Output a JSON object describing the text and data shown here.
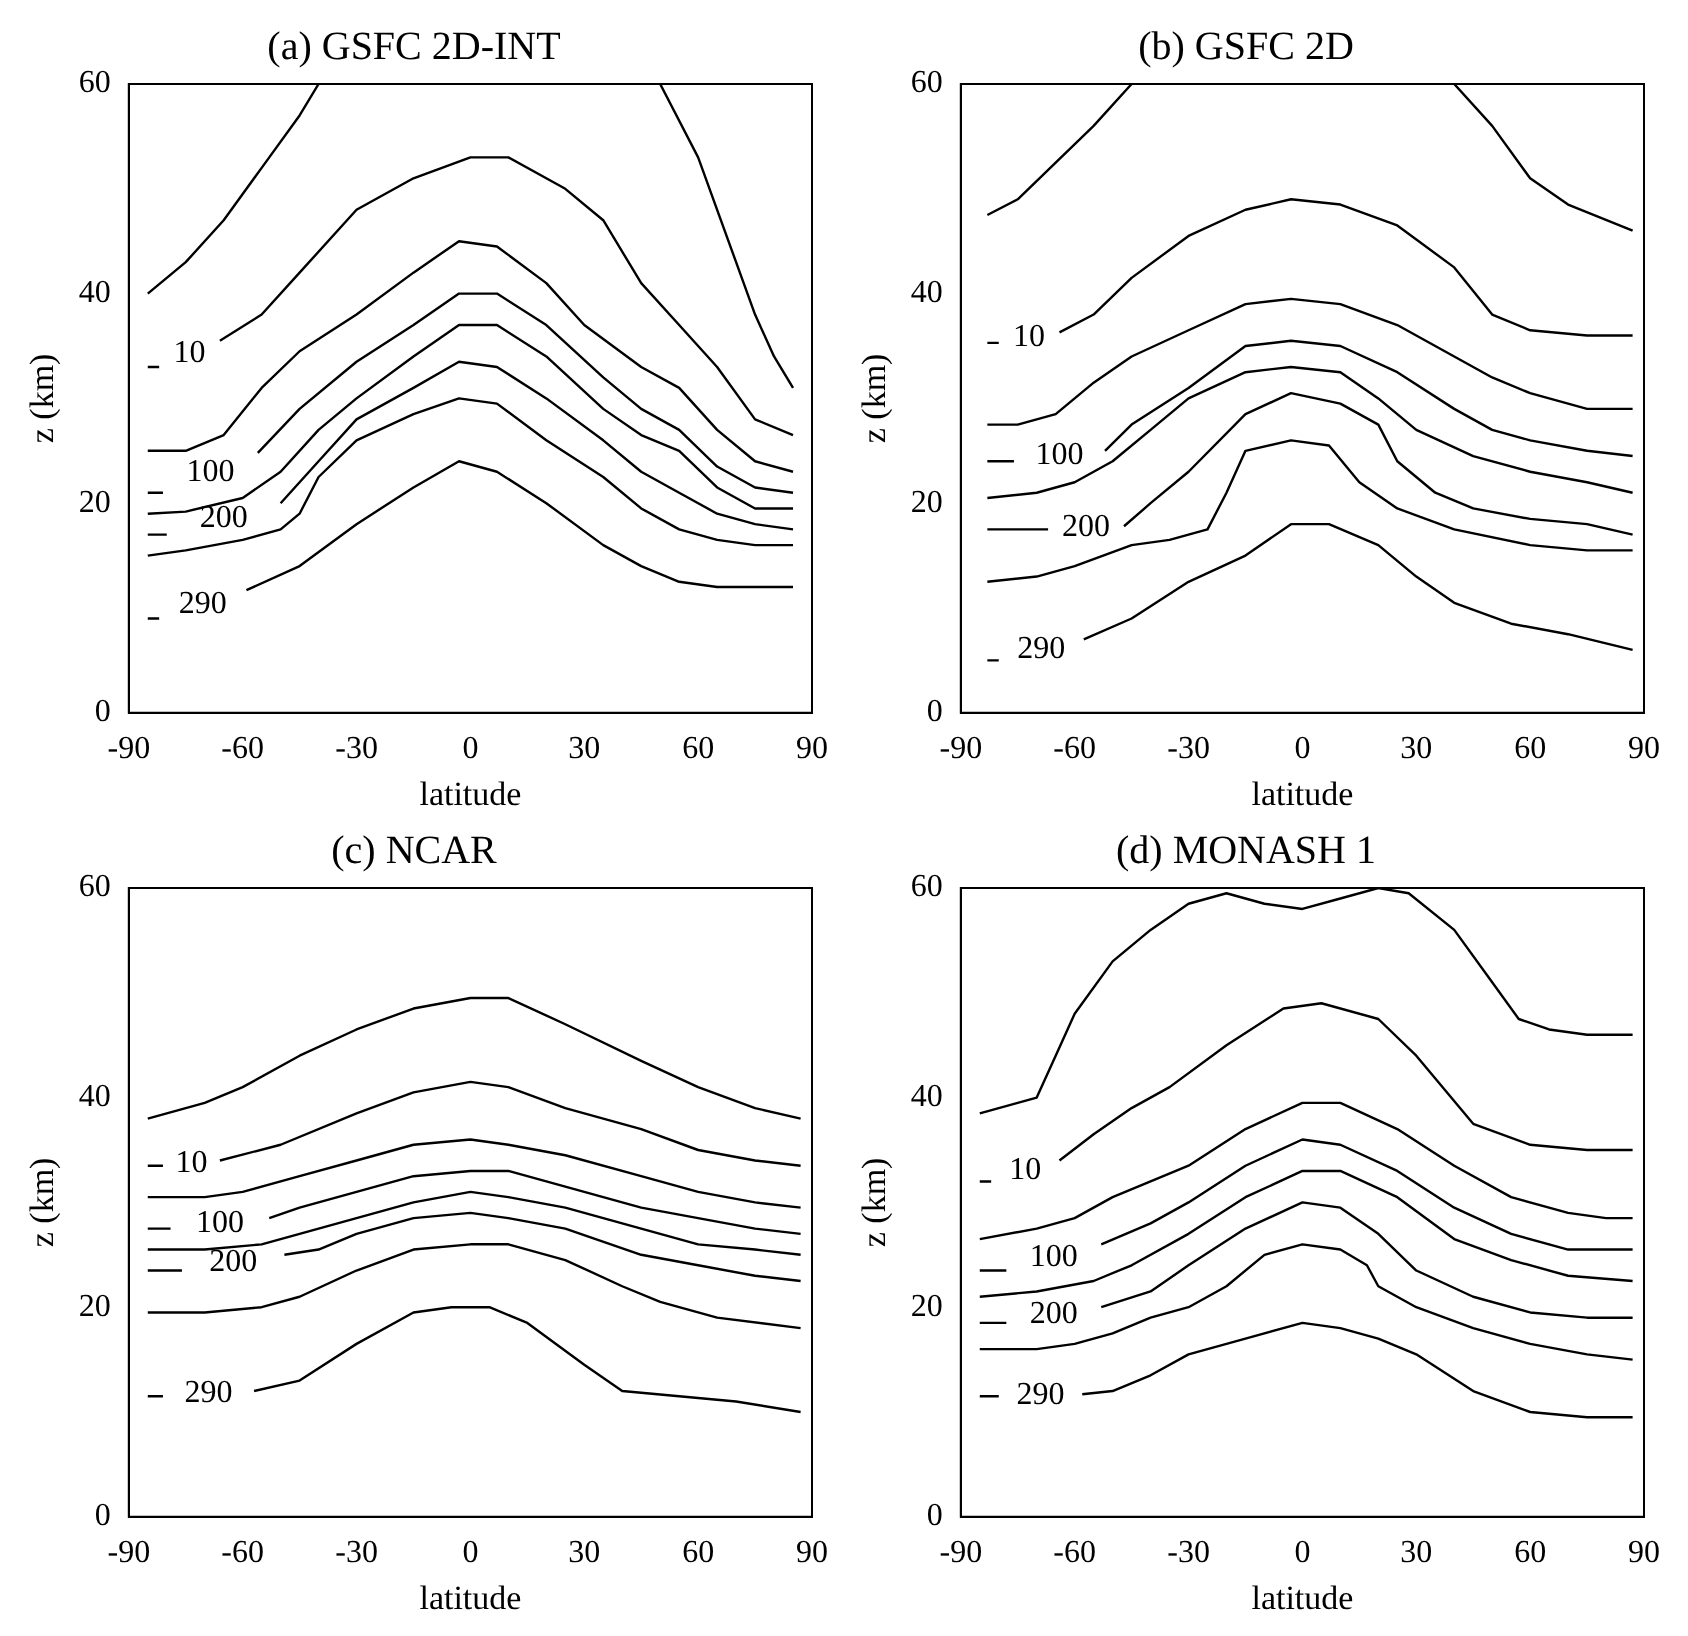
{
  "chart_data": [
    {
      "type": "line",
      "title": "(a) GSFC 2D-INT",
      "xlabel": "latitude",
      "ylabel": "z (km)",
      "xlim": [
        -90,
        90
      ],
      "ylim": [
        0,
        60
      ],
      "xticks": [
        -90,
        -60,
        -30,
        0,
        30,
        60,
        90
      ],
      "yticks": [
        0,
        20,
        40,
        60
      ],
      "marker": "none",
      "line_style": "solid",
      "series": [
        {
          "color": "#000000",
          "x": [
            -85,
            -75,
            -65,
            -55,
            -45,
            -40,
            5,
            50,
            60,
            70,
            75,
            80,
            85
          ],
          "values": [
            40,
            43,
            47,
            52,
            57,
            60,
            null,
            60,
            53,
            43,
            38,
            34,
            31
          ]
        },
        {
          "name": "10",
          "color": "#000000",
          "x": [
            -85,
            -82,
            -74,
            -66,
            -55,
            -45,
            -30,
            -15,
            0,
            10,
            25,
            35,
            45,
            55,
            65,
            75,
            85
          ],
          "values": [
            33,
            33,
            null,
            35.5,
            38,
            42,
            48,
            51,
            53,
            53,
            50,
            47,
            41,
            37,
            33,
            28,
            26.5
          ]
        },
        {
          "color": "#000000",
          "x": [
            -85,
            -75,
            -65,
            -55,
            -45,
            -30,
            -15,
            -3,
            7,
            20,
            30,
            45,
            55,
            65,
            75,
            85
          ],
          "values": [
            25,
            25,
            26.5,
            31,
            34.5,
            38,
            42,
            45,
            44.5,
            41,
            37,
            33,
            31,
            27,
            24,
            23
          ]
        },
        {
          "name": "100",
          "color": "#000000",
          "x": [
            -85,
            -81,
            -68,
            -56,
            -45,
            -30,
            -15,
            -3,
            7,
            20,
            35,
            45,
            55,
            65,
            75,
            85
          ],
          "values": [
            21,
            21,
            null,
            24.8,
            29,
            33.5,
            37,
            40,
            40,
            37,
            32,
            29,
            27,
            23.5,
            21.5,
            21
          ]
        },
        {
          "color": "#000000",
          "x": [
            -85,
            -75,
            -60,
            -50,
            -40,
            -30,
            -15,
            -3,
            7,
            20,
            35,
            45,
            55,
            65,
            75,
            85
          ],
          "values": [
            19,
            19.2,
            20.5,
            23,
            27,
            30,
            34,
            37,
            37,
            34,
            29,
            26.5,
            25,
            21.5,
            19.5,
            19.5
          ]
        },
        {
          "name": "200",
          "color": "#000000",
          "x": [
            -85,
            -80,
            -64,
            -50,
            -40,
            -30,
            -15,
            -3,
            7,
            20,
            35,
            45,
            55,
            65,
            75,
            85
          ],
          "values": [
            17,
            17,
            null,
            20,
            24,
            28,
            31,
            33.5,
            33,
            30,
            26,
            23,
            21,
            19,
            18,
            17.5
          ]
        },
        {
          "color": "#000000",
          "x": [
            -85,
            -75,
            -60,
            -50,
            -45,
            -40,
            -30,
            -15,
            -3,
            7,
            20,
            35,
            45,
            55,
            65,
            75,
            85
          ],
          "values": [
            15,
            15.5,
            16.5,
            17.5,
            19,
            22.5,
            26,
            28.5,
            30,
            29.5,
            26,
            22.5,
            19.5,
            17.5,
            16.5,
            16,
            16
          ]
        },
        {
          "name": "290",
          "color": "#000000",
          "x": [
            -85,
            -82,
            -71,
            -59,
            -45,
            -30,
            -15,
            -3,
            7,
            20,
            35,
            45,
            55,
            65,
            75,
            85
          ],
          "values": [
            9,
            9,
            null,
            11.7,
            14,
            18,
            21.5,
            24,
            23,
            20,
            16,
            14,
            12.5,
            12,
            12,
            12
          ]
        }
      ]
    },
    {
      "type": "line",
      "title": "(b) GSFC 2D",
      "xlabel": "latitude",
      "ylabel": "z (km)",
      "xlim": [
        -90,
        90
      ],
      "ylim": [
        0,
        60
      ],
      "xticks": [
        -90,
        -60,
        -30,
        0,
        30,
        60,
        90
      ],
      "yticks": [
        0,
        20,
        40,
        60
      ],
      "marker": "none",
      "line_style": "solid",
      "series": [
        {
          "color": "#000000",
          "x": [
            -83,
            -75,
            -65,
            -55,
            -45,
            0,
            40,
            50,
            60,
            70,
            87
          ],
          "values": [
            47.5,
            49,
            52.5,
            56,
            60,
            null,
            60,
            56,
            51,
            48.5,
            46
          ]
        },
        {
          "name": "10",
          "color": "#000000",
          "x": [
            -83,
            -80,
            -73,
            -64,
            -55,
            -45,
            -30,
            -15,
            -3,
            10,
            25,
            40,
            50,
            60,
            75,
            87
          ],
          "values": [
            35.3,
            35.3,
            null,
            36.3,
            38,
            41.5,
            45.5,
            48,
            49,
            48.5,
            46.5,
            42.5,
            38,
            36.5,
            36,
            36
          ]
        },
        {
          "color": "#000000",
          "x": [
            -83,
            -75,
            -65,
            -55,
            -45,
            -30,
            -15,
            -3,
            10,
            25,
            40,
            50,
            60,
            75,
            87
          ],
          "values": [
            27.5,
            27.5,
            28.5,
            31.5,
            34,
            36.5,
            39,
            39.5,
            39,
            37,
            34,
            32,
            30.5,
            29,
            29
          ]
        },
        {
          "name": "100",
          "color": "#000000",
          "x": [
            -83,
            -76,
            -64,
            -52,
            -45,
            -30,
            -15,
            -3,
            10,
            25,
            40,
            50,
            60,
            75,
            87
          ],
          "values": [
            24,
            24,
            null,
            25,
            27.5,
            31,
            35,
            35.5,
            35,
            32.5,
            29,
            27,
            26,
            25,
            24.5
          ]
        },
        {
          "color": "#000000",
          "x": [
            -83,
            -70,
            -60,
            -50,
            -40,
            -30,
            -15,
            -3,
            10,
            20,
            30,
            45,
            60,
            75,
            87
          ],
          "values": [
            20.5,
            21,
            22,
            24,
            27,
            30,
            32.5,
            33,
            32.5,
            30,
            27,
            24.5,
            23,
            22,
            21
          ]
        },
        {
          "name": "200",
          "color": "#000000",
          "x": [
            -83,
            -67,
            -57,
            -47,
            -40,
            -30,
            -15,
            -3,
            10,
            20,
            25,
            35,
            45,
            60,
            75,
            87
          ],
          "values": [
            17.5,
            17.5,
            null,
            17.8,
            20,
            23,
            28.5,
            30.5,
            29.5,
            27.5,
            24,
            21,
            19.5,
            18.5,
            18,
            17
          ]
        },
        {
          "color": "#000000",
          "x": [
            -83,
            -70,
            -60,
            -45,
            -35,
            -25,
            -20,
            -15,
            -3,
            7,
            15,
            25,
            40,
            60,
            75,
            87
          ],
          "values": [
            12.5,
            13,
            14,
            16,
            16.5,
            17.5,
            21,
            25,
            26,
            25.5,
            22,
            19.5,
            17.5,
            16,
            15.5,
            15.5
          ]
        },
        {
          "name": "290",
          "color": "#000000",
          "x": [
            -83,
            -80,
            -69,
            -57.6,
            -45,
            -30,
            -15,
            -3,
            7,
            20,
            30,
            40,
            55,
            70,
            87
          ],
          "values": [
            5,
            5,
            null,
            7,
            9,
            12.5,
            15,
            18,
            18,
            16,
            13,
            10.5,
            8.5,
            7.5,
            6
          ]
        }
      ]
    },
    {
      "type": "line",
      "title": "(c) NCAR",
      "xlabel": "latitude",
      "ylabel": "z (km)",
      "xlim": [
        -90,
        90
      ],
      "ylim": [
        0,
        60
      ],
      "xticks": [
        -90,
        -60,
        -30,
        0,
        30,
        60,
        90
      ],
      "yticks": [
        0,
        20,
        40,
        60
      ],
      "marker": "none",
      "line_style": "solid",
      "series": [
        {
          "color": "#000000",
          "x": [
            -85,
            -70,
            -60,
            -45,
            -30,
            -15,
            0,
            10,
            25,
            45,
            60,
            75,
            87
          ],
          "values": [
            38,
            39.5,
            41,
            44,
            46.5,
            48.5,
            49.5,
            49.5,
            47,
            43.5,
            41,
            39,
            38
          ]
        },
        {
          "name": "10",
          "color": "#000000",
          "x": [
            -85,
            -81,
            -74,
            -66,
            -50,
            -30,
            -15,
            0,
            10,
            25,
            45,
            60,
            75,
            87
          ],
          "values": [
            33.5,
            33.5,
            null,
            34,
            35.5,
            38.5,
            40.5,
            41.5,
            41,
            39,
            37,
            35,
            34,
            33.5
          ]
        },
        {
          "color": "#000000",
          "x": [
            -85,
            -70,
            -60,
            -45,
            -30,
            -15,
            0,
            10,
            25,
            45,
            60,
            75,
            87
          ],
          "values": [
            30.5,
            30.5,
            31,
            32.5,
            34,
            35.5,
            36,
            35.5,
            34.5,
            32.5,
            31,
            30,
            29.5
          ]
        },
        {
          "name": "100",
          "color": "#000000",
          "x": [
            -85,
            -79,
            -66,
            -53,
            -45,
            -30,
            -15,
            0,
            10,
            25,
            45,
            60,
            75,
            87
          ],
          "values": [
            27.5,
            27.5,
            null,
            28.5,
            29.5,
            31,
            32.5,
            33,
            33,
            31.5,
            29.5,
            28.5,
            27.5,
            27
          ]
        },
        {
          "color": "#000000",
          "x": [
            -85,
            -70,
            -55,
            -45,
            -30,
            -15,
            0,
            10,
            25,
            45,
            60,
            75,
            87
          ],
          "values": [
            25.5,
            25.5,
            26,
            27,
            28.5,
            30,
            31,
            30.5,
            29.5,
            27.5,
            26,
            25.5,
            25
          ]
        },
        {
          "name": "200",
          "color": "#000000",
          "x": [
            -85,
            -76,
            -62,
            -49,
            -40,
            -30,
            -15,
            0,
            10,
            25,
            45,
            60,
            75,
            87
          ],
          "values": [
            23.5,
            23.5,
            null,
            25,
            25.5,
            27,
            28.5,
            29,
            28.5,
            27.5,
            25,
            24,
            23,
            22.5
          ]
        },
        {
          "color": "#000000",
          "x": [
            -85,
            -70,
            -55,
            -45,
            -30,
            -15,
            0,
            10,
            25,
            40,
            50,
            65,
            87
          ],
          "values": [
            19.5,
            19.5,
            20,
            21,
            23.5,
            25.5,
            26,
            26,
            24.5,
            22,
            20.5,
            19,
            18
          ]
        },
        {
          "name": "290",
          "color": "#000000",
          "x": [
            -85,
            -81,
            -70,
            -57,
            -45,
            -30,
            -15,
            -5,
            5,
            15,
            30,
            40,
            55,
            70,
            87
          ],
          "values": [
            11.5,
            11.5,
            null,
            12,
            13,
            16.5,
            19.5,
            20,
            20,
            18.5,
            14.5,
            12,
            11.5,
            11,
            10
          ]
        }
      ]
    },
    {
      "type": "line",
      "title": "(d) MONASH 1",
      "xlabel": "latitude",
      "ylabel": "z (km)",
      "xlim": [
        -90,
        90
      ],
      "ylim": [
        0,
        60
      ],
      "xticks": [
        -90,
        -60,
        -30,
        0,
        30,
        60,
        90
      ],
      "yticks": [
        0,
        20,
        40,
        60
      ],
      "marker": "none",
      "line_style": "solid",
      "series": [
        {
          "color": "#000000",
          "x": [
            -85,
            -75,
            -70,
            -65,
            -60,
            -50,
            -40,
            -30,
            -20,
            -10,
            0,
            10,
            20,
            28,
            40,
            50,
            57,
            65,
            75,
            87
          ],
          "values": [
            38.5,
            39.5,
            40,
            44,
            48,
            53,
            56,
            58.5,
            59.5,
            58.5,
            58,
            59,
            60,
            59.5,
            56,
            51,
            47.5,
            46.5,
            46,
            46
          ]
        },
        {
          "name": "10",
          "color": "#000000",
          "x": [
            -85,
            -82,
            -74,
            -64,
            -55,
            -45,
            -35,
            -20,
            -5,
            5,
            20,
            30,
            45,
            60,
            75,
            87
          ],
          "values": [
            32,
            32,
            null,
            34,
            36.5,
            39,
            41,
            45,
            48.5,
            49,
            47.5,
            44,
            37.5,
            35.5,
            35,
            35
          ]
        },
        {
          "color": "#000000",
          "x": [
            -85,
            -70,
            -60,
            -50,
            -40,
            -30,
            -15,
            0,
            10,
            25,
            40,
            55,
            70,
            80,
            87
          ],
          "values": [
            26.5,
            27.5,
            28.5,
            30.5,
            32,
            33.5,
            37,
            39.5,
            39.5,
            37,
            33.5,
            30.5,
            29,
            28.5,
            28.5
          ]
        },
        {
          "name": "100",
          "color": "#000000",
          "x": [
            -85,
            -78,
            -66,
            -53,
            -40,
            -30,
            -15,
            0,
            10,
            25,
            40,
            55,
            70,
            87
          ],
          "values": [
            23.5,
            23.5,
            null,
            26,
            28,
            30,
            33.5,
            36,
            35.5,
            33,
            29.5,
            27,
            25.5,
            25.5
          ]
        },
        {
          "color": "#000000",
          "x": [
            -85,
            -70,
            -55,
            -45,
            -30,
            -15,
            0,
            10,
            25,
            40,
            55,
            70,
            87
          ],
          "values": [
            21,
            21.5,
            22.5,
            24,
            27,
            30.5,
            33,
            33,
            30.5,
            26.5,
            24.5,
            23,
            22.5
          ]
        },
        {
          "name": "200",
          "color": "#000000",
          "x": [
            -85,
            -78,
            -66,
            -53,
            -40,
            -30,
            -15,
            0,
            10,
            20,
            30,
            45,
            60,
            75,
            87
          ],
          "values": [
            18.5,
            18.5,
            null,
            20,
            21.5,
            24,
            27.5,
            30,
            29.5,
            27,
            23.5,
            21,
            19.5,
            19,
            19
          ]
        },
        {
          "color": "#000000",
          "x": [
            -85,
            -70,
            -60,
            -50,
            -40,
            -30,
            -20,
            -10,
            0,
            10,
            17,
            20,
            30,
            45,
            60,
            75,
            87
          ],
          "values": [
            16,
            16,
            16.5,
            17.5,
            19,
            20,
            22,
            25,
            26,
            25.5,
            24,
            22,
            20,
            18,
            16.5,
            15.5,
            15
          ]
        },
        {
          "name": "290",
          "color": "#000000",
          "x": [
            -85,
            -80,
            -70,
            -58,
            -50,
            -40,
            -30,
            -15,
            0,
            10,
            20,
            30,
            45,
            60,
            75,
            87
          ],
          "values": [
            11.5,
            11.5,
            null,
            11.7,
            12,
            13.5,
            15.5,
            17,
            18.5,
            18,
            17,
            15.5,
            12,
            10,
            9.5,
            9.5
          ]
        }
      ]
    }
  ]
}
